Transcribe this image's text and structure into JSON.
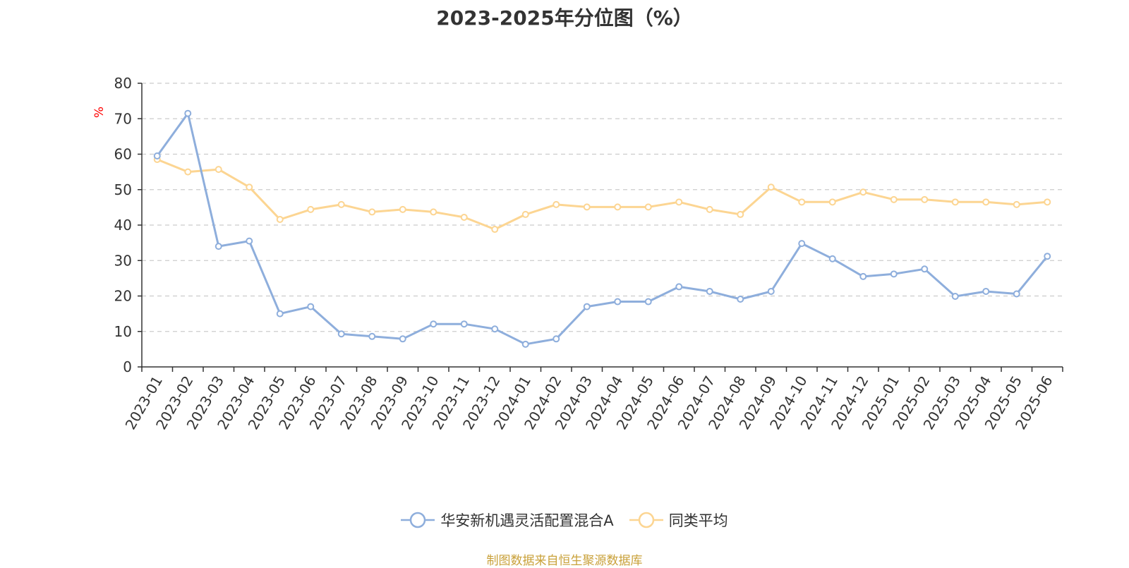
{
  "chart_data": {
    "type": "line",
    "title": "2023-2025年分位图（%）",
    "ylabel": "%",
    "xlabel": "",
    "ylim": [
      0,
      80
    ],
    "yticks": [
      0,
      10,
      20,
      30,
      40,
      50,
      60,
      70,
      80
    ],
    "grid": "horizontal dashed",
    "legend_position": "bottom",
    "categories": [
      "2023-01",
      "2023-02",
      "2023-03",
      "2023-04",
      "2023-05",
      "2023-06",
      "2023-07",
      "2023-08",
      "2023-09",
      "2023-10",
      "2023-11",
      "2023-12",
      "2024-01",
      "2024-02",
      "2024-03",
      "2024-04",
      "2024-05",
      "2024-06",
      "2024-07",
      "2024-08",
      "2024-09",
      "2024-10",
      "2024-11",
      "2024-12",
      "2025-01",
      "2025-02",
      "2025-03",
      "2025-04",
      "2025-05",
      "2025-06"
    ],
    "series": [
      {
        "name": "华安新机遇灵活配置混合A",
        "color": "#8eaedc",
        "values": [
          59.5,
          71.5,
          34.0,
          35.5,
          15.0,
          17.0,
          9.3,
          8.6,
          7.9,
          12.1,
          12.1,
          10.7,
          6.4,
          7.9,
          17.0,
          18.4,
          18.4,
          22.6,
          21.3,
          19.1,
          21.3,
          34.8,
          30.5,
          25.5,
          26.2,
          27.6,
          19.9,
          21.3,
          20.6,
          31.2
        ]
      },
      {
        "name": "同类平均",
        "color": "#fcd592",
        "values": [
          58.5,
          55.0,
          55.7,
          50.7,
          41.6,
          44.4,
          45.8,
          43.7,
          44.4,
          43.7,
          42.2,
          38.8,
          43.0,
          45.8,
          45.1,
          45.1,
          45.1,
          46.5,
          44.4,
          43.0,
          50.7,
          46.5,
          46.5,
          49.3,
          47.2,
          47.2,
          46.5,
          46.5,
          45.8,
          46.5
        ]
      }
    ]
  },
  "source_note": "制图数据来自恒生聚源数据库"
}
